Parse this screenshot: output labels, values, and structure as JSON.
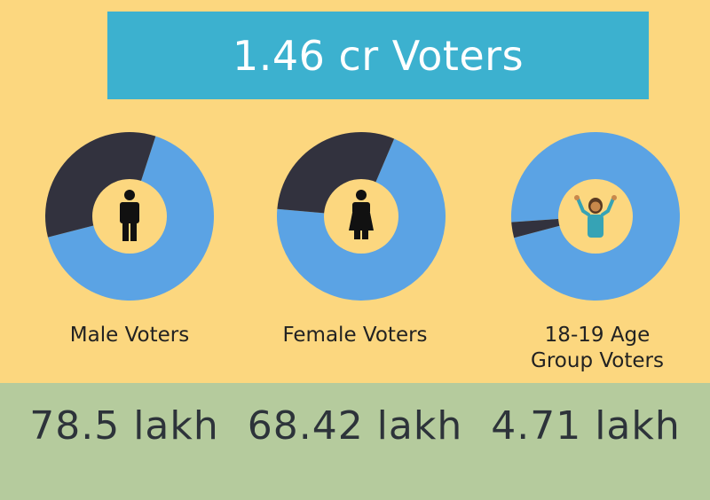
{
  "banner": {
    "title": "1.46 cr Voters"
  },
  "colors": {
    "background_top": "#fcd77f",
    "background_bottom": "#b5cb9d",
    "banner": "#3cb1cf",
    "slice_blue": "#5ba3e4",
    "slice_dark": "#32323e",
    "icon_dark": "#111111",
    "icon_teal": "#36a3b5"
  },
  "chart_data": [
    {
      "type": "pie",
      "title": "Male Voters",
      "categories": [
        "",
        ""
      ],
      "values": [
        66,
        34
      ],
      "colors": [
        "#5ba3e4",
        "#32323e"
      ],
      "icon": "male-person-icon",
      "figure": "78.5 lakh"
    },
    {
      "type": "pie",
      "title": "Female Voters",
      "categories": [
        "",
        ""
      ],
      "values": [
        70,
        30
      ],
      "colors": [
        "#5ba3e4",
        "#32323e"
      ],
      "icon": "female-person-icon",
      "figure": "68.42 lakh"
    },
    {
      "type": "pie",
      "title": "18-19 Age\nGroup Voters",
      "categories": [
        "",
        ""
      ],
      "values": [
        97,
        3
      ],
      "colors": [
        "#5ba3e4",
        "#32323e"
      ],
      "icon": "cheering-person-icon",
      "figure": "4.71 lakh"
    }
  ]
}
